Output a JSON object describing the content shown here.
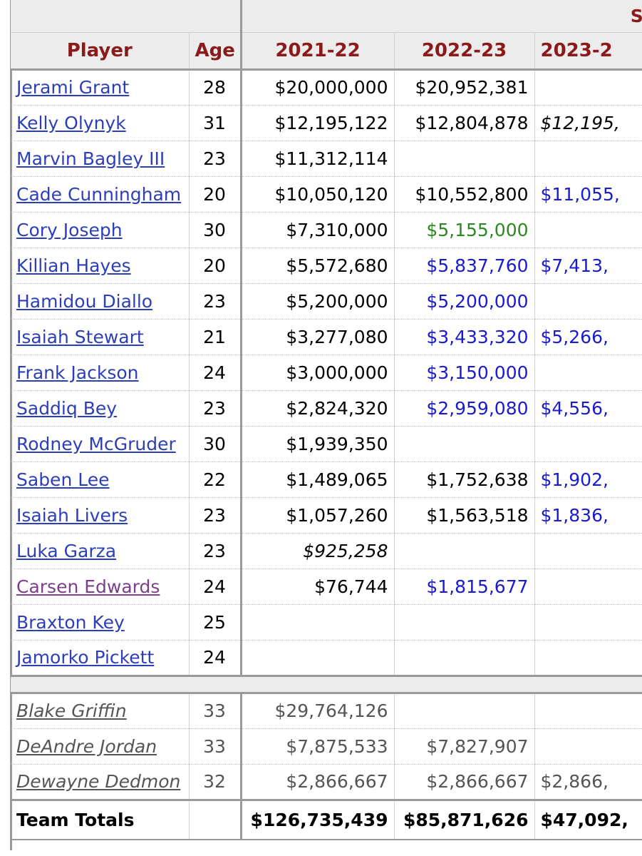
{
  "header": {
    "salary_group": "Sala",
    "columns": [
      "Player",
      "Age",
      "2021-22",
      "2022-23",
      "2023-2"
    ]
  },
  "players": [
    {
      "name": "Jerami Grant",
      "age": "28",
      "y1": "$20,000,000",
      "y2": "$20,952,381",
      "y3": ""
    },
    {
      "name": "Kelly Olynyk",
      "age": "31",
      "y1": "$12,195,122",
      "y2": "$12,804,878",
      "y3": "$12,195,"
    },
    {
      "name": "Marvin Bagley III",
      "age": "23",
      "y1": "$11,312,114",
      "y2": "",
      "y3": ""
    },
    {
      "name": "Cade Cunningham",
      "age": "20",
      "y1": "$10,050,120",
      "y2": "$10,552,800",
      "y3": "$11,055,"
    },
    {
      "name": "Cory Joseph",
      "age": "30",
      "y1": "$7,310,000",
      "y2": "$5,155,000",
      "y3": ""
    },
    {
      "name": "Killian Hayes",
      "age": "20",
      "y1": "$5,572,680",
      "y2": "$5,837,760",
      "y3": "$7,413,"
    },
    {
      "name": "Hamidou Diallo",
      "age": "23",
      "y1": "$5,200,000",
      "y2": "$5,200,000",
      "y3": ""
    },
    {
      "name": "Isaiah Stewart",
      "age": "21",
      "y1": "$3,277,080",
      "y2": "$3,433,320",
      "y3": "$5,266,"
    },
    {
      "name": "Frank Jackson",
      "age": "24",
      "y1": "$3,000,000",
      "y2": "$3,150,000",
      "y3": ""
    },
    {
      "name": "Saddiq Bey",
      "age": "23",
      "y1": "$2,824,320",
      "y2": "$2,959,080",
      "y3": "$4,556,"
    },
    {
      "name": "Rodney McGruder",
      "age": "30",
      "y1": "$1,939,350",
      "y2": "",
      "y3": ""
    },
    {
      "name": "Saben Lee",
      "age": "22",
      "y1": "$1,489,065",
      "y2": "$1,752,638",
      "y3": "$1,902,"
    },
    {
      "name": "Isaiah Livers",
      "age": "23",
      "y1": "$1,057,260",
      "y2": "$1,563,518",
      "y3": "$1,836,"
    },
    {
      "name": "Luka Garza",
      "age": "23",
      "y1": "$925,258",
      "y2": "",
      "y3": ""
    },
    {
      "name": "Carsen Edwards",
      "age": "24",
      "y1": "$76,744",
      "y2": "$1,815,677",
      "y3": ""
    },
    {
      "name": "Braxton Key",
      "age": "25",
      "y1": "",
      "y2": "",
      "y3": ""
    },
    {
      "name": "Jamorko Pickett",
      "age": "24",
      "y1": "",
      "y2": "",
      "y3": ""
    }
  ],
  "waived": [
    {
      "name": "Blake Griffin",
      "age": "33",
      "y1": "$29,764,126",
      "y2": "",
      "y3": ""
    },
    {
      "name": "DeAndre Jordan",
      "age": "33",
      "y1": "$7,875,533",
      "y2": "$7,827,907",
      "y3": ""
    },
    {
      "name": "Dewayne Dedmon",
      "age": "32",
      "y1": "$2,866,667",
      "y2": "$2,866,667",
      "y3": "$2,866,"
    }
  ],
  "totals": {
    "label": "Team Totals",
    "y1": "$126,735,439",
    "y2": "$85,871,626",
    "y3": "$47,092,"
  },
  "colors": {
    "header_text": "#8b1a1a",
    "link": "#2c3fb8",
    "visited_link": "#7b3f8c",
    "option_green": "#2a8a1f",
    "option_blue": "#1a1ad0"
  }
}
